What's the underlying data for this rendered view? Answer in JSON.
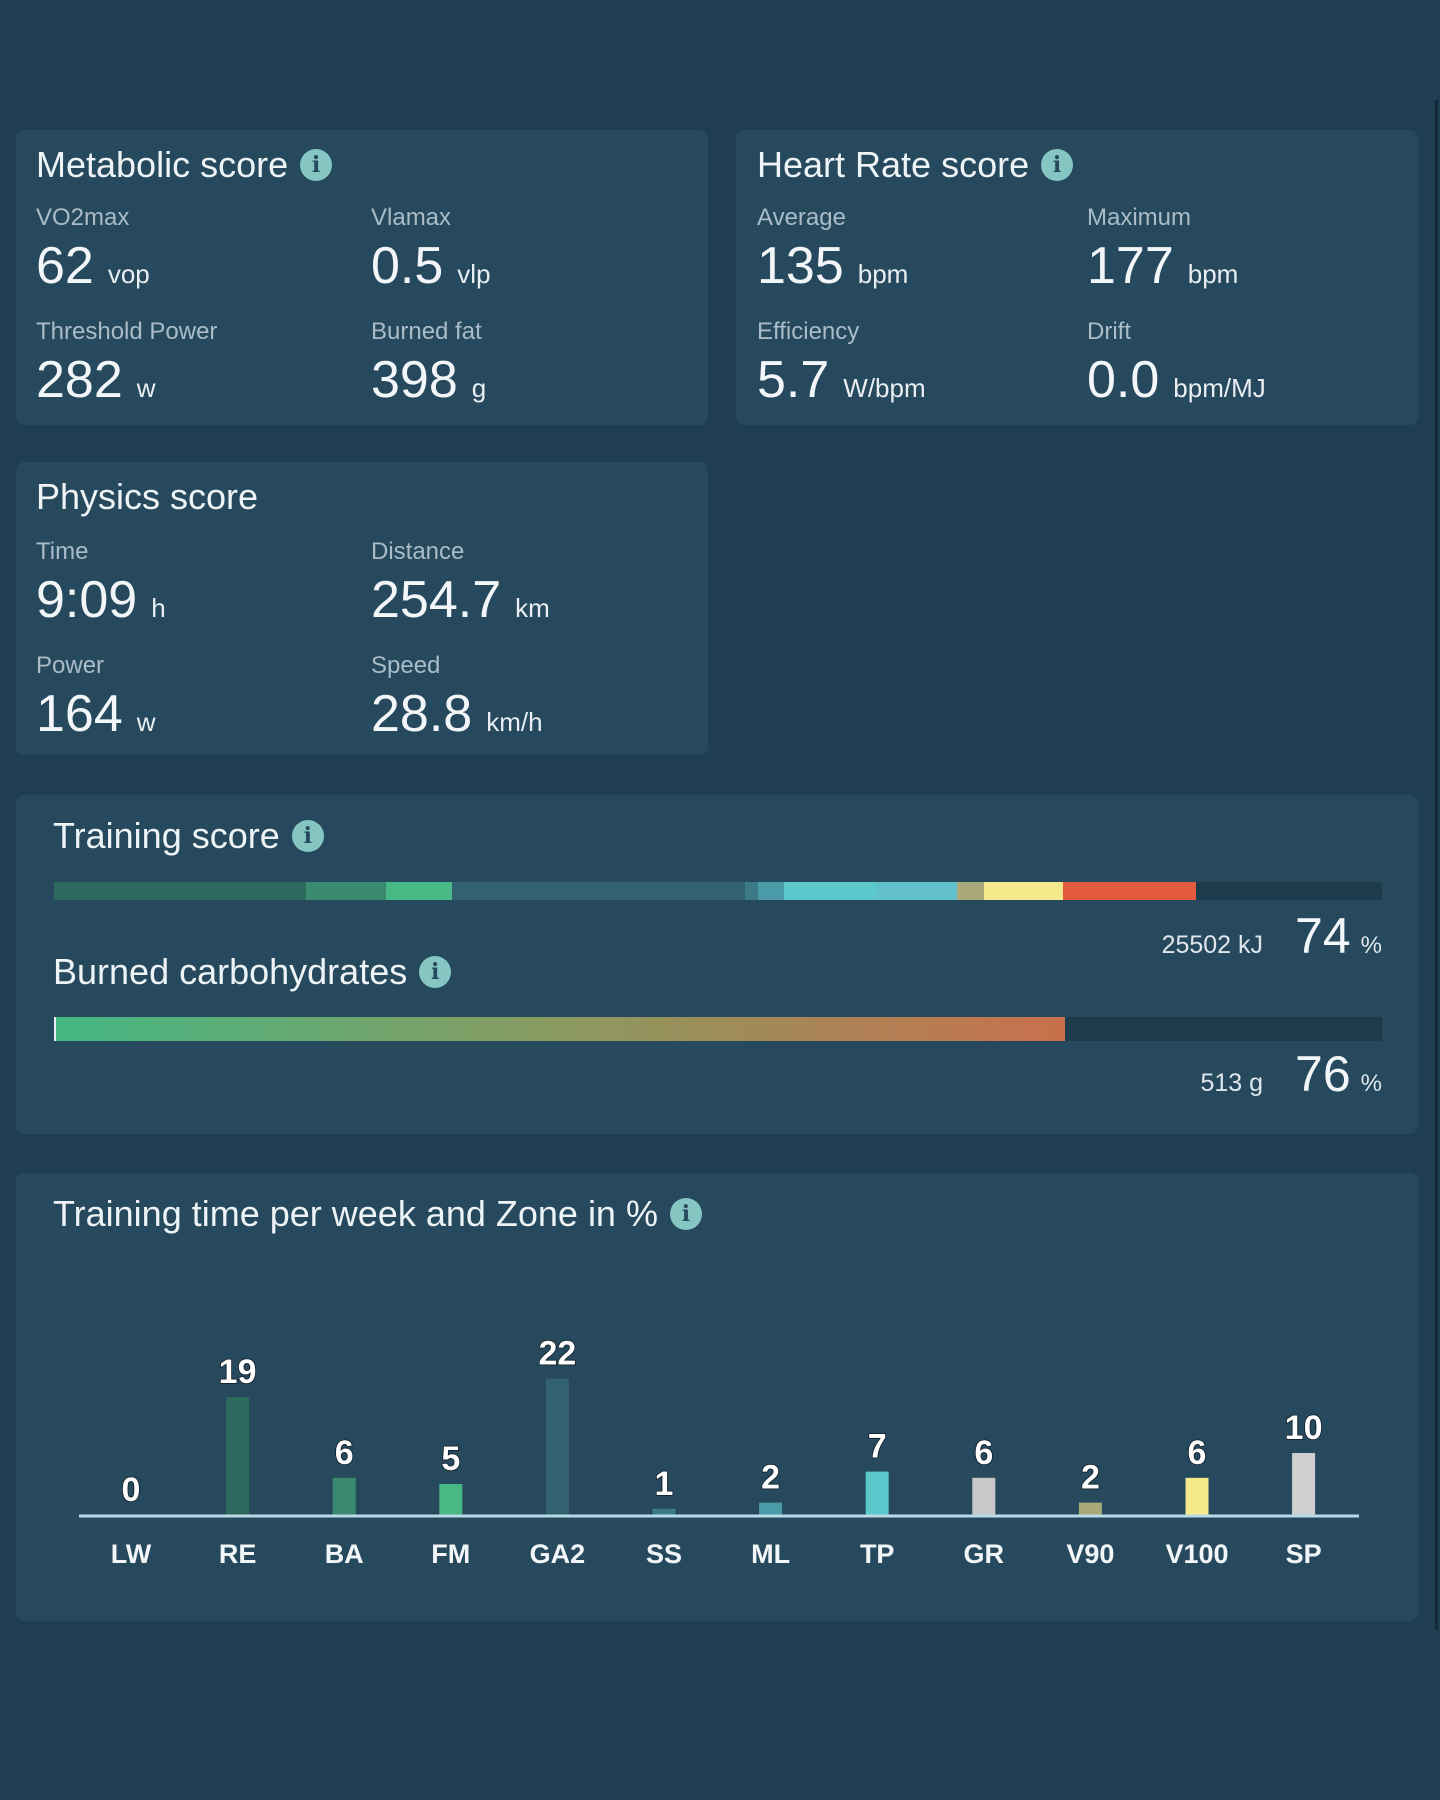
{
  "metabolic": {
    "title": "Metabolic score",
    "stats": [
      {
        "label": "VO2max",
        "value": "62",
        "unit": "vop"
      },
      {
        "label": "Vlamax",
        "value": "0.5",
        "unit": "vlp"
      },
      {
        "label": "Threshold Power",
        "value": "282",
        "unit": "w"
      },
      {
        "label": "Burned fat",
        "value": "398",
        "unit": "g"
      }
    ]
  },
  "heart": {
    "title": "Heart Rate score",
    "stats": [
      {
        "label": "Average",
        "value": "135",
        "unit": "bpm"
      },
      {
        "label": "Maximum",
        "value": "177",
        "unit": "bpm"
      },
      {
        "label": "Efficiency",
        "value": "5.7",
        "unit": "W/bpm"
      },
      {
        "label": "Drift",
        "value": "0.0",
        "unit": "bpm/MJ"
      }
    ]
  },
  "physics": {
    "title": "Physics score",
    "stats": [
      {
        "label": "Time",
        "value": "9:09",
        "unit": "h"
      },
      {
        "label": "Distance",
        "value": "254.7",
        "unit": "km"
      },
      {
        "label": "Power",
        "value": "164",
        "unit": "w"
      },
      {
        "label": "Speed",
        "value": "28.8",
        "unit": "km/h"
      }
    ]
  },
  "training": {
    "title": "Training score",
    "amount": "25502 kJ",
    "percent": "74",
    "percent_sign": "%",
    "segment_colors": [
      "#2d6a5e",
      "#2d6a5e",
      "#3a8a70",
      "#48b884",
      "#336170",
      "#3d7a88",
      "#4a9aa8",
      "#5cc8cc",
      "#62c0cc",
      "#a8a878",
      "#f4ea8c",
      "#e45a3c"
    ]
  },
  "carbs": {
    "title": "Burned carbohydrates",
    "amount": "513 g",
    "percent": "76",
    "percent_sign": "%",
    "fill": 76,
    "gradient": [
      "#45b884",
      "#8a9a60",
      "#c8704c"
    ]
  },
  "zones": {
    "title": "Training time per week and Zone in %"
  },
  "chart_data": {
    "type": "bar",
    "title": "Training time per week and Zone in %",
    "categories": [
      "LW",
      "RE",
      "BA",
      "FM",
      "GA2",
      "SS",
      "ML",
      "TP",
      "GR",
      "V90",
      "V100",
      "SP"
    ],
    "values": [
      0,
      19,
      6,
      5,
      22,
      1,
      2,
      7,
      6,
      2,
      6,
      10
    ],
    "colors": [
      "#2d6a5e",
      "#2d6a5e",
      "#3a8a70",
      "#48b884",
      "#336170",
      "#3d7a88",
      "#4a9aa8",
      "#5cc8cc",
      "#c8c8c8",
      "#a8a878",
      "#f4ea8c",
      "#cfcfcf"
    ],
    "ylim": [
      0,
      22
    ],
    "grid": false
  }
}
